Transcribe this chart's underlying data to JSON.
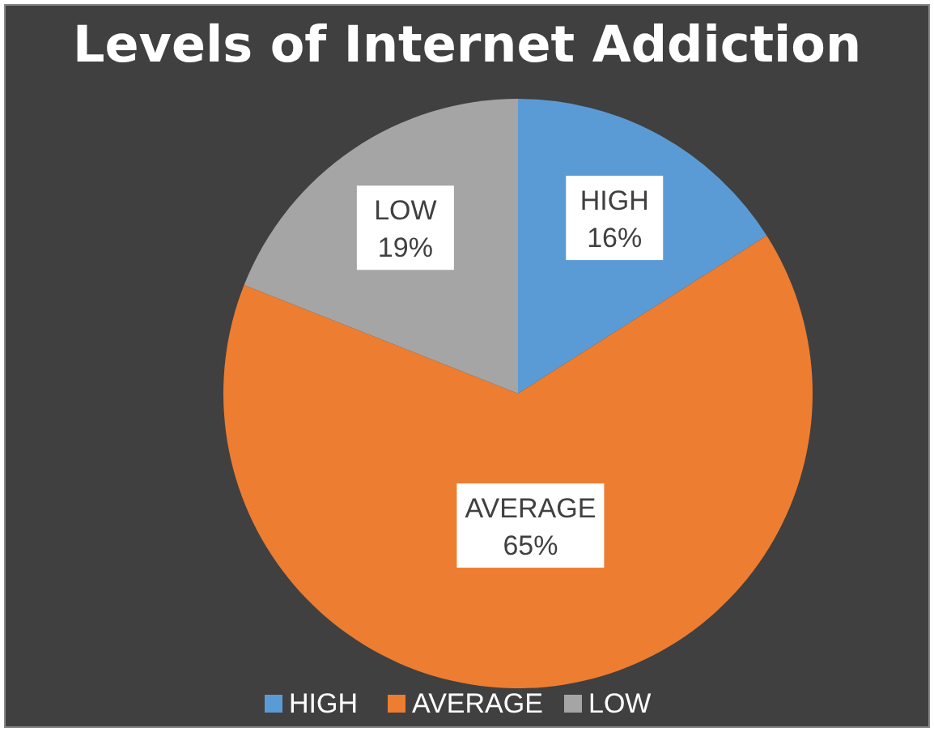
{
  "chart_data": {
    "type": "pie",
    "title": "Levels of Internet Addiction",
    "categories": [
      "HIGH",
      "AVERAGE",
      "LOW"
    ],
    "values": [
      16,
      65,
      19
    ],
    "value_labels": [
      "16%",
      "65%",
      "19%"
    ],
    "colors": [
      "#5b9bd5",
      "#ed7d31",
      "#a5a5a5"
    ],
    "legend": "bottom"
  }
}
